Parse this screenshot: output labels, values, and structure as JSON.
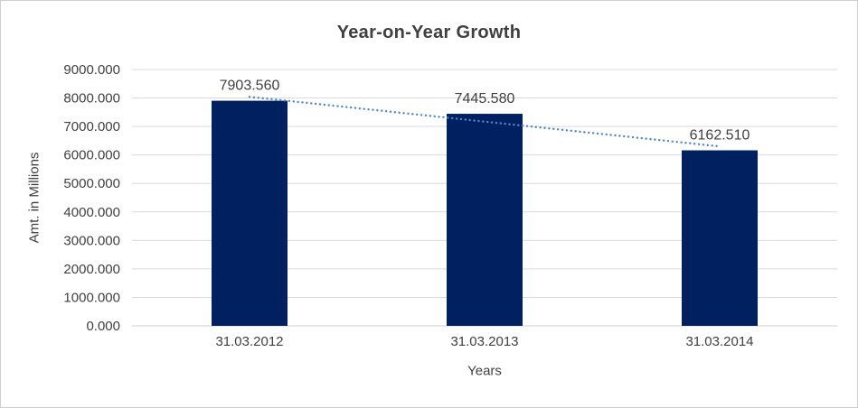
{
  "chart_data": {
    "type": "bar",
    "title": "Year-on-Year Growth",
    "categories": [
      "31.03.2012",
      "31.03.2013",
      "31.03.2014"
    ],
    "values": [
      7903.56,
      7445.58,
      6162.51
    ],
    "data_labels": [
      "7903.560",
      "7445.580",
      "6162.510"
    ],
    "xlabel": "Years",
    "ylabel": "Amt. in Millions",
    "ylim": [
      0,
      9000
    ],
    "ytick_step": 1000,
    "ytick_labels": [
      "0.000",
      "1000.000",
      "2000.000",
      "3000.000",
      "4000.000",
      "5000.000",
      "6000.000",
      "7000.000",
      "8000.000",
      "9000.000"
    ],
    "grid": true,
    "legend": "none",
    "bar_color": "#002060",
    "trendline": {
      "type": "linear",
      "style": "dotted",
      "color": "#5087c7"
    },
    "gridline_color": "#d9d9d9",
    "axis_line_color": "#d9d9d9",
    "tick_label_color": "#404040",
    "data_label_color": "#404040",
    "background_color": "#ffffff",
    "border_color": "#d0cece"
  }
}
